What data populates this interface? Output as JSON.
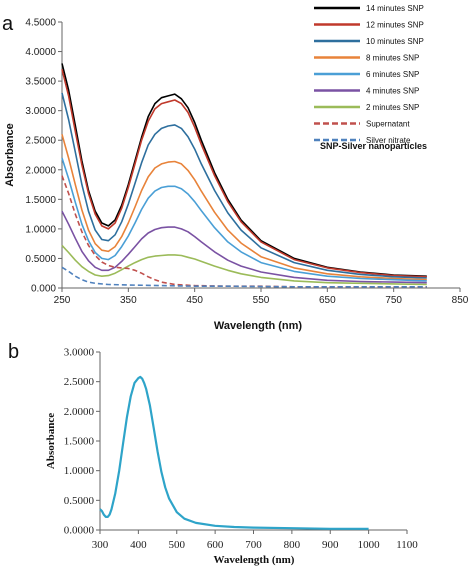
{
  "panels": {
    "a": "a",
    "b": "b"
  },
  "chart_data": [
    {
      "type": "line",
      "xlabel": "Wavelength (nm)",
      "ylabel": "Absorbance",
      "xlim": [
        250,
        850
      ],
      "ylim": [
        0,
        4.5
      ],
      "xticks": [
        "250",
        "350",
        "450",
        "550",
        "650",
        "750",
        "850"
      ],
      "yticks": [
        "0.000",
        "0.5000",
        "1.0000",
        "1.5000",
        "2.0000",
        "2.5000",
        "3.0000",
        "3.5000",
        "4.0000",
        "4.5000"
      ],
      "grid": false,
      "legend_position": "top-right",
      "annotation": "SNP-Silver nanoparticles",
      "series": [
        {
          "name": "14 minutes SNP",
          "color": "#000000",
          "style": "solid",
          "x": [
            250,
            260,
            270,
            280,
            290,
            300,
            310,
            320,
            330,
            340,
            350,
            360,
            370,
            380,
            390,
            400,
            410,
            420,
            430,
            440,
            450,
            460,
            480,
            500,
            520,
            550,
            600,
            650,
            700,
            750,
            800
          ],
          "y": [
            3.8,
            3.35,
            2.75,
            2.15,
            1.65,
            1.3,
            1.1,
            1.05,
            1.15,
            1.4,
            1.75,
            2.15,
            2.55,
            2.9,
            3.12,
            3.22,
            3.25,
            3.28,
            3.2,
            3.05,
            2.8,
            2.5,
            1.95,
            1.5,
            1.15,
            0.8,
            0.5,
            0.35,
            0.27,
            0.22,
            0.2
          ]
        },
        {
          "name": "12 minutes SNP",
          "color": "#c0392b",
          "style": "solid",
          "x": [
            250,
            260,
            270,
            280,
            290,
            300,
            310,
            320,
            330,
            340,
            350,
            360,
            370,
            380,
            390,
            400,
            410,
            420,
            430,
            440,
            450,
            460,
            480,
            500,
            520,
            550,
            600,
            650,
            700,
            750,
            800
          ],
          "y": [
            3.7,
            3.25,
            2.65,
            2.08,
            1.6,
            1.25,
            1.05,
            1.0,
            1.1,
            1.35,
            1.7,
            2.1,
            2.5,
            2.82,
            3.03,
            3.12,
            3.15,
            3.18,
            3.12,
            2.97,
            2.72,
            2.43,
            1.9,
            1.46,
            1.12,
            0.78,
            0.48,
            0.34,
            0.26,
            0.21,
            0.19
          ]
        },
        {
          "name": "10 minutes SNP",
          "color": "#2e6f9e",
          "style": "solid",
          "x": [
            250,
            260,
            270,
            280,
            290,
            300,
            310,
            320,
            330,
            340,
            350,
            360,
            370,
            380,
            390,
            400,
            410,
            420,
            430,
            440,
            450,
            460,
            480,
            500,
            520,
            550,
            600,
            650,
            700,
            750,
            800
          ],
          "y": [
            3.3,
            2.85,
            2.3,
            1.75,
            1.3,
            0.98,
            0.82,
            0.8,
            0.9,
            1.12,
            1.42,
            1.77,
            2.12,
            2.42,
            2.6,
            2.7,
            2.74,
            2.76,
            2.7,
            2.56,
            2.35,
            2.1,
            1.65,
            1.27,
            0.98,
            0.68,
            0.43,
            0.3,
            0.23,
            0.19,
            0.17
          ]
        },
        {
          "name": "8 minutes SNP",
          "color": "#e8833a",
          "style": "solid",
          "x": [
            250,
            260,
            270,
            280,
            290,
            300,
            310,
            320,
            330,
            340,
            350,
            360,
            370,
            380,
            390,
            400,
            410,
            420,
            430,
            440,
            450,
            460,
            480,
            500,
            520,
            550,
            600,
            650,
            700,
            750,
            800
          ],
          "y": [
            2.6,
            2.2,
            1.75,
            1.32,
            0.98,
            0.75,
            0.64,
            0.62,
            0.7,
            0.87,
            1.1,
            1.37,
            1.65,
            1.88,
            2.03,
            2.1,
            2.13,
            2.14,
            2.1,
            1.99,
            1.83,
            1.64,
            1.28,
            0.98,
            0.76,
            0.53,
            0.34,
            0.24,
            0.19,
            0.16,
            0.14
          ]
        },
        {
          "name": "6 minutes SNP",
          "color": "#4a9fd6",
          "style": "solid",
          "x": [
            250,
            260,
            270,
            280,
            290,
            300,
            310,
            320,
            330,
            340,
            350,
            360,
            370,
            380,
            390,
            400,
            410,
            420,
            430,
            440,
            450,
            460,
            480,
            500,
            520,
            550,
            600,
            650,
            700,
            750,
            800
          ],
          "y": [
            2.2,
            1.85,
            1.45,
            1.08,
            0.8,
            0.6,
            0.5,
            0.48,
            0.55,
            0.7,
            0.88,
            1.1,
            1.33,
            1.52,
            1.64,
            1.7,
            1.72,
            1.72,
            1.68,
            1.59,
            1.46,
            1.31,
            1.02,
            0.78,
            0.61,
            0.43,
            0.28,
            0.2,
            0.16,
            0.14,
            0.12
          ]
        },
        {
          "name": "4 minutes SNP",
          "color": "#7a52a3",
          "style": "solid",
          "x": [
            250,
            260,
            270,
            280,
            290,
            300,
            310,
            320,
            330,
            340,
            350,
            360,
            370,
            380,
            390,
            400,
            410,
            420,
            430,
            440,
            450,
            460,
            480,
            500,
            520,
            550,
            600,
            650,
            700,
            750,
            800
          ],
          "y": [
            1.3,
            1.08,
            0.84,
            0.62,
            0.46,
            0.35,
            0.3,
            0.3,
            0.35,
            0.45,
            0.57,
            0.7,
            0.83,
            0.93,
            0.99,
            1.02,
            1.03,
            1.03,
            1.0,
            0.95,
            0.87,
            0.78,
            0.61,
            0.47,
            0.37,
            0.27,
            0.18,
            0.13,
            0.11,
            0.1,
            0.09
          ]
        },
        {
          "name": "2 minutes SNP",
          "color": "#9bbb59",
          "style": "solid",
          "x": [
            250,
            260,
            270,
            280,
            290,
            300,
            310,
            320,
            330,
            340,
            350,
            360,
            370,
            380,
            390,
            400,
            410,
            420,
            430,
            440,
            450,
            460,
            480,
            500,
            520,
            550,
            600,
            650,
            700,
            750,
            800
          ],
          "y": [
            0.72,
            0.6,
            0.47,
            0.36,
            0.28,
            0.22,
            0.2,
            0.21,
            0.25,
            0.31,
            0.37,
            0.43,
            0.48,
            0.52,
            0.54,
            0.55,
            0.56,
            0.56,
            0.55,
            0.52,
            0.49,
            0.45,
            0.37,
            0.3,
            0.24,
            0.18,
            0.12,
            0.09,
            0.08,
            0.07,
            0.06
          ]
        },
        {
          "name": "Supernatant",
          "color": "#c0504d",
          "style": "dashed",
          "x": [
            250,
            260,
            270,
            280,
            290,
            300,
            310,
            320,
            330,
            340,
            350,
            360,
            370,
            380,
            390,
            400,
            420,
            450,
            500,
            550,
            600,
            700,
            800
          ],
          "y": [
            1.9,
            1.6,
            1.25,
            0.95,
            0.72,
            0.55,
            0.44,
            0.38,
            0.35,
            0.34,
            0.33,
            0.3,
            0.25,
            0.19,
            0.14,
            0.1,
            0.06,
            0.04,
            0.03,
            0.03,
            0.02,
            0.02,
            0.02
          ]
        },
        {
          "name": "Silver nitrate",
          "color": "#4f81bd",
          "style": "dashed",
          "x": [
            250,
            260,
            270,
            280,
            290,
            300,
            320,
            350,
            400,
            450,
            500,
            600,
            700,
            800
          ],
          "y": [
            0.35,
            0.28,
            0.2,
            0.14,
            0.1,
            0.08,
            0.06,
            0.05,
            0.04,
            0.03,
            0.03,
            0.02,
            0.02,
            0.02
          ]
        }
      ]
    },
    {
      "type": "line",
      "xlabel": "Wavelength (nm)",
      "ylabel": "Absorbance",
      "xlim": [
        300,
        1100
      ],
      "ylim": [
        0,
        3
      ],
      "xticks": [
        "300",
        "400",
        "500",
        "600",
        "700",
        "800",
        "900",
        "1000",
        "1100"
      ],
      "yticks": [
        "0.0000",
        "0.5000",
        "1.0000",
        "1.5000",
        "2.0000",
        "2.5000",
        "3.0000"
      ],
      "grid": false,
      "series": [
        {
          "color": "#2ea4c9",
          "x": [
            300,
            305,
            310,
            315,
            320,
            325,
            330,
            340,
            350,
            360,
            370,
            380,
            390,
            400,
            405,
            410,
            415,
            420,
            430,
            440,
            450,
            460,
            470,
            480,
            500,
            520,
            550,
            600,
            650,
            700,
            800,
            900,
            1000
          ],
          "y": [
            0.35,
            0.32,
            0.26,
            0.22,
            0.22,
            0.26,
            0.35,
            0.62,
            1.0,
            1.45,
            1.9,
            2.25,
            2.48,
            2.56,
            2.58,
            2.55,
            2.48,
            2.38,
            2.1,
            1.72,
            1.32,
            0.98,
            0.72,
            0.53,
            0.3,
            0.19,
            0.12,
            0.07,
            0.05,
            0.04,
            0.03,
            0.02,
            0.02
          ]
        }
      ]
    }
  ]
}
